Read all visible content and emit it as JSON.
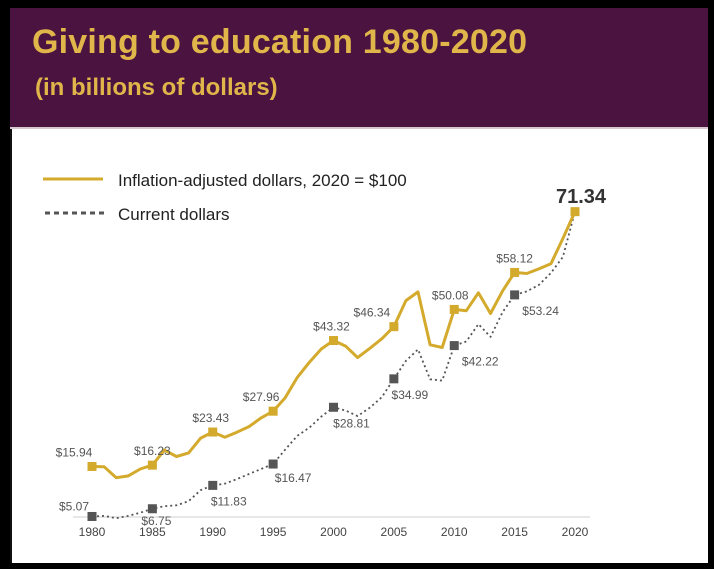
{
  "chart_data": {
    "type": "line",
    "title": "Giving to education 1980-2020",
    "subtitle": "(in billions of dollars)",
    "xlabel": "",
    "ylabel": "",
    "x_ticks": [
      "1980",
      "1985",
      "1990",
      "1995",
      "2000",
      "2005",
      "2010",
      "2015",
      "2020"
    ],
    "ylim": [
      0,
      80
    ],
    "grid": false,
    "legend_position": "top-left",
    "highlight_label": "71.34",
    "series": [
      {
        "name": "Inflation-adjusted dollars, 2020 = $100",
        "color": "#d4aa2d",
        "style": "solid",
        "points": [
          [
            1980,
            15.94
          ],
          [
            1981,
            15.9
          ],
          [
            1982,
            13.5
          ],
          [
            1983,
            13.9
          ],
          [
            1984,
            15.4
          ],
          [
            1985,
            16.23
          ],
          [
            1986,
            19.5
          ],
          [
            1987,
            18.1
          ],
          [
            1988,
            18.9
          ],
          [
            1989,
            22.1
          ],
          [
            1990,
            23.43
          ],
          [
            1991,
            22.3
          ],
          [
            1992,
            23.4
          ],
          [
            1993,
            24.6
          ],
          [
            1994,
            26.5
          ],
          [
            1995,
            27.96
          ],
          [
            1996,
            30.9
          ],
          [
            1997,
            35.3
          ],
          [
            1998,
            38.6
          ],
          [
            1999,
            41.5
          ],
          [
            2000,
            43.32
          ],
          [
            2001,
            42.1
          ],
          [
            2002,
            39.6
          ],
          [
            2003,
            41.6
          ],
          [
            2004,
            43.7
          ],
          [
            2005,
            46.34
          ],
          [
            2006,
            52.0
          ],
          [
            2007,
            53.9
          ],
          [
            2008,
            42.4
          ],
          [
            2009,
            41.8
          ],
          [
            2010,
            50.08
          ],
          [
            2011,
            49.8
          ],
          [
            2012,
            53.7
          ],
          [
            2013,
            49.2
          ],
          [
            2014,
            54.1
          ],
          [
            2015,
            58.12
          ],
          [
            2016,
            57.9
          ],
          [
            2017,
            58.9
          ],
          [
            2018,
            60.0
          ],
          [
            2019,
            65.5
          ],
          [
            2020,
            71.34
          ]
        ],
        "markers": [
          {
            "x": 1980,
            "y": 15.94,
            "label": "$15.94"
          },
          {
            "x": 1985,
            "y": 16.23,
            "label": "$16.23"
          },
          {
            "x": 1990,
            "y": 23.43,
            "label": "$23.43"
          },
          {
            "x": 1995,
            "y": 27.96,
            "label": "$27.96"
          },
          {
            "x": 2000,
            "y": 43.32,
            "label": "$43.32"
          },
          {
            "x": 2005,
            "y": 46.34,
            "label": "$46.34"
          },
          {
            "x": 2010,
            "y": 50.08,
            "label": "$50.08"
          },
          {
            "x": 2015,
            "y": 58.12,
            "label": "$58.12"
          },
          {
            "x": 2020,
            "y": 71.34,
            "label": ""
          }
        ]
      },
      {
        "name": "Current dollars",
        "color": "#555555",
        "style": "dotted",
        "points": [
          [
            1980,
            5.07
          ],
          [
            1981,
            5.2
          ],
          [
            1982,
            4.7
          ],
          [
            1983,
            5.2
          ],
          [
            1984,
            5.9
          ],
          [
            1985,
            6.75
          ],
          [
            1986,
            7.3
          ],
          [
            1987,
            7.5
          ],
          [
            1988,
            8.4
          ],
          [
            1989,
            10.8
          ],
          [
            1990,
            11.83
          ],
          [
            1991,
            12.2
          ],
          [
            1992,
            13.2
          ],
          [
            1993,
            14.3
          ],
          [
            1994,
            15.4
          ],
          [
            1995,
            16.47
          ],
          [
            1996,
            19.6
          ],
          [
            1997,
            22.6
          ],
          [
            1998,
            24.4
          ],
          [
            1999,
            26.8
          ],
          [
            2000,
            28.81
          ],
          [
            2001,
            28.1
          ],
          [
            2002,
            26.9
          ],
          [
            2003,
            28.7
          ],
          [
            2004,
            31.0
          ],
          [
            2005,
            34.99
          ],
          [
            2006,
            38.9
          ],
          [
            2007,
            41.4
          ],
          [
            2008,
            34.9
          ],
          [
            2009,
            34.6
          ],
          [
            2010,
            42.22
          ],
          [
            2011,
            43.1
          ],
          [
            2012,
            46.9
          ],
          [
            2013,
            44.1
          ],
          [
            2014,
            49.5
          ],
          [
            2015,
            53.24
          ],
          [
            2016,
            54.0
          ],
          [
            2017,
            55.4
          ],
          [
            2018,
            58.0
          ],
          [
            2019,
            61.5
          ],
          [
            2020,
            71.34
          ]
        ],
        "markers": [
          {
            "x": 1980,
            "y": 5.07,
            "label": "$5.07"
          },
          {
            "x": 1985,
            "y": 6.75,
            "label": "$6.75"
          },
          {
            "x": 1990,
            "y": 11.83,
            "label": "$11.83"
          },
          {
            "x": 1995,
            "y": 16.47,
            "label": "$16.47"
          },
          {
            "x": 2000,
            "y": 28.81,
            "label": "$28.81"
          },
          {
            "x": 2005,
            "y": 34.99,
            "label": "$34.99"
          },
          {
            "x": 2010,
            "y": 42.22,
            "label": "$42.22"
          },
          {
            "x": 2015,
            "y": 53.24,
            "label": "$53.24"
          }
        ]
      }
    ]
  },
  "colors": {
    "header_background": "#4a1340",
    "title_text": "#e0b54a",
    "adjusted_line": "#d4aa2d",
    "current_line": "#555555"
  }
}
